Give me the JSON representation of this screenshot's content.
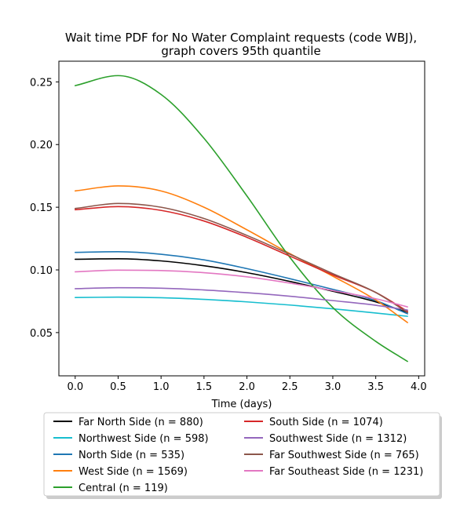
{
  "chart_data": {
    "type": "line",
    "title": [
      "Wait time PDF for No Water Complaint  requests (code WBJ),",
      "graph covers 95th quantile"
    ],
    "xlabel": "Time (days)",
    "ylabel": "",
    "xlim": [
      -0.19,
      4.07
    ],
    "ylim": [
      0.0155,
      0.2665
    ],
    "xticks": [
      0.0,
      0.5,
      1.0,
      1.5,
      2.0,
      2.5,
      3.0,
      3.5,
      4.0
    ],
    "xtick_labels": [
      "0.0",
      "0.5",
      "1.0",
      "1.5",
      "2.0",
      "2.5",
      "3.0",
      "3.5",
      "4.0"
    ],
    "yticks": [
      0.05,
      0.1,
      0.15,
      0.2,
      0.25
    ],
    "ytick_labels": [
      "0.05",
      "0.10",
      "0.15",
      "0.20",
      "0.25"
    ],
    "grid": false,
    "legend_placement": "below",
    "x": [
      0.0,
      0.5,
      1.0,
      1.5,
      2.0,
      2.5,
      3.0,
      3.5,
      3.87
    ],
    "series": [
      {
        "name": "Far North Side (n = 880)",
        "color": "#000000",
        "values": [
          0.1085,
          0.1089,
          0.1072,
          0.1033,
          0.0978,
          0.0908,
          0.083,
          0.0745,
          0.066
        ]
      },
      {
        "name": "Northwest Side (n = 598)",
        "color": "#17becf",
        "values": [
          0.078,
          0.0783,
          0.0778,
          0.0765,
          0.0745,
          0.072,
          0.069,
          0.0656,
          0.063
        ]
      },
      {
        "name": "North Side (n = 535)",
        "color": "#1f77b4",
        "values": [
          0.114,
          0.1145,
          0.1125,
          0.108,
          0.101,
          0.093,
          0.0845,
          0.0755,
          0.065
        ]
      },
      {
        "name": "West Side (n = 1569)",
        "color": "#ff7f0e",
        "values": [
          0.163,
          0.167,
          0.163,
          0.15,
          0.132,
          0.113,
          0.095,
          0.076,
          0.058
        ]
      },
      {
        "name": "Central (n = 119)",
        "color": "#2ca02c",
        "values": [
          0.247,
          0.255,
          0.24,
          0.205,
          0.159,
          0.11,
          0.07,
          0.043,
          0.027
        ]
      },
      {
        "name": "South Side (n = 1074)",
        "color": "#d62728",
        "values": [
          0.148,
          0.1505,
          0.1475,
          0.139,
          0.126,
          0.111,
          0.096,
          0.082,
          0.067
        ]
      },
      {
        "name": "Southwest Side (n = 1312)",
        "color": "#9467bd",
        "values": [
          0.085,
          0.0858,
          0.0854,
          0.084,
          0.0818,
          0.079,
          0.0755,
          0.0718,
          0.068
        ]
      },
      {
        "name": "Far Southwest Side (n = 765)",
        "color": "#8c564b",
        "values": [
          0.149,
          0.153,
          0.15,
          0.141,
          0.1275,
          0.1125,
          0.097,
          0.082,
          0.066
        ]
      },
      {
        "name": "Far Southeast Side (n = 1231)",
        "color": "#e377c2",
        "values": [
          0.0985,
          0.0998,
          0.0995,
          0.0978,
          0.0945,
          0.0895,
          0.0835,
          0.077,
          0.0705
        ]
      }
    ]
  }
}
